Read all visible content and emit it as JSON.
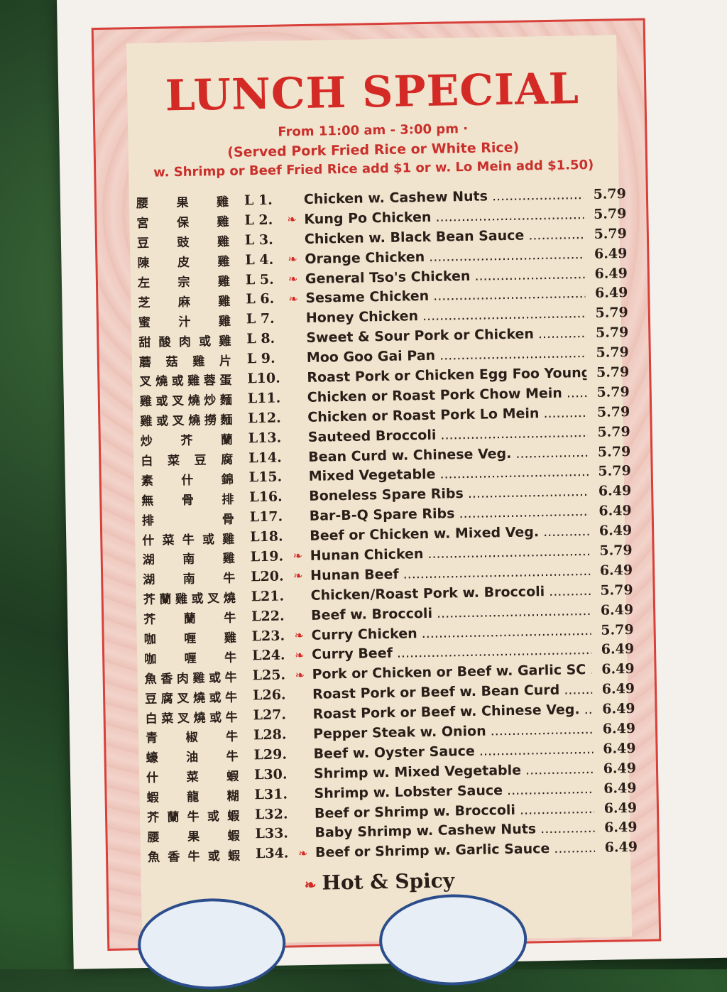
{
  "header": {
    "title": "LUNCH SPECIAL",
    "hours": "From 11:00 am - 3:00 pm ·",
    "served": "(Served Pork Fried Rice or White Rice)",
    "addon": "w. Shrimp or Beef Fried Rice add $1 or w. Lo Mein add $1.50)"
  },
  "items": [
    {
      "cn": "腰果雞",
      "code": "L 1.",
      "name": "Chicken w. Cashew Nuts",
      "price": "5.79",
      "hot": false
    },
    {
      "cn": "宮保雞",
      "code": "L 2.",
      "name": "Kung Po Chicken",
      "price": "5.79",
      "hot": true
    },
    {
      "cn": "豆豉雞",
      "code": "L 3.",
      "name": "Chicken w. Black Bean Sauce",
      "price": "5.79",
      "hot": false
    },
    {
      "cn": "陳皮雞",
      "code": "L 4.",
      "name": "Orange Chicken",
      "price": "6.49",
      "hot": true
    },
    {
      "cn": "左宗雞",
      "code": "L 5.",
      "name": "General Tso's Chicken",
      "price": "6.49",
      "hot": true
    },
    {
      "cn": "芝麻雞",
      "code": "L 6.",
      "name": "Sesame Chicken",
      "price": "6.49",
      "hot": true
    },
    {
      "cn": "蜜汁雞",
      "code": "L 7.",
      "name": "Honey Chicken",
      "price": "5.79",
      "hot": false
    },
    {
      "cn": "甜酸肉或雞",
      "code": "L 8.",
      "name": "Sweet & Sour Pork or Chicken",
      "price": "5.79",
      "hot": false
    },
    {
      "cn": "蘑菇雞片",
      "code": "L 9.",
      "name": "Moo Goo Gai Pan",
      "price": "5.79",
      "hot": false
    },
    {
      "cn": "叉燒或雞蓉蛋",
      "code": "L10.",
      "name": "Roast Pork or Chicken Egg Foo Young",
      "price": "5.79",
      "hot": false
    },
    {
      "cn": "雞或叉燒炒麵",
      "code": "L11.",
      "name": "Chicken or Roast Pork Chow Mein",
      "price": "5.79",
      "hot": false
    },
    {
      "cn": "雞或叉燒撈麵",
      "code": "L12.",
      "name": "Chicken or Roast Pork Lo Mein",
      "price": "5.79",
      "hot": false
    },
    {
      "cn": "炒芥蘭",
      "code": "L13.",
      "name": "Sauteed Broccoli",
      "price": "5.79",
      "hot": false
    },
    {
      "cn": "白菜豆腐",
      "code": "L14.",
      "name": "Bean Curd w. Chinese Veg.",
      "price": "5.79",
      "hot": false
    },
    {
      "cn": "素什錦",
      "code": "L15.",
      "name": "Mixed Vegetable",
      "price": "5.79",
      "hot": false
    },
    {
      "cn": "無骨排",
      "code": "L16.",
      "name": "Boneless Spare Ribs",
      "price": "6.49",
      "hot": false
    },
    {
      "cn": "排骨",
      "code": "L17.",
      "name": "Bar-B-Q Spare Ribs",
      "price": "6.49",
      "hot": false
    },
    {
      "cn": "什菜牛或雞",
      "code": "L18.",
      "name": "Beef or Chicken w. Mixed Veg.",
      "price": "6.49",
      "hot": false
    },
    {
      "cn": "湖南雞",
      "code": "L19.",
      "name": "Hunan Chicken",
      "price": "5.79",
      "hot": true
    },
    {
      "cn": "湖南牛",
      "code": "L20.",
      "name": "Hunan Beef",
      "price": "6.49",
      "hot": true
    },
    {
      "cn": "芥蘭雞或叉燒",
      "code": "L21.",
      "name": "Chicken/Roast Pork w. Broccoli",
      "price": "5.79",
      "hot": false
    },
    {
      "cn": "芥蘭牛",
      "code": "L22.",
      "name": "Beef w. Broccoli",
      "price": "6.49",
      "hot": false
    },
    {
      "cn": "咖喱雞",
      "code": "L23.",
      "name": "Curry Chicken",
      "price": "5.79",
      "hot": true
    },
    {
      "cn": "咖喱牛",
      "code": "L24.",
      "name": "Curry Beef",
      "price": "6.49",
      "hot": true
    },
    {
      "cn": "魚香肉雞或牛",
      "code": "L25.",
      "name": "Pork or Chicken or Beef w. Garlic SC",
      "price": "6.49",
      "hot": true
    },
    {
      "cn": "豆腐叉燒或牛",
      "code": "L26.",
      "name": "Roast Pork or Beef w. Bean Curd",
      "price": "6.49",
      "hot": false
    },
    {
      "cn": "白菜叉燒或牛",
      "code": "L27.",
      "name": "Roast Pork or Beef w. Chinese Veg.",
      "price": "6.49",
      "hot": false
    },
    {
      "cn": "青椒牛",
      "code": "L28.",
      "name": "Pepper Steak w. Onion",
      "price": "6.49",
      "hot": false
    },
    {
      "cn": "蠔油牛",
      "code": "L29.",
      "name": "Beef w. Oyster Sauce",
      "price": "6.49",
      "hot": false
    },
    {
      "cn": "什菜蝦",
      "code": "L30.",
      "name": "Shrimp w. Mixed Vegetable",
      "price": "6.49",
      "hot": false
    },
    {
      "cn": "蝦龍糊",
      "code": "L31.",
      "name": "Shrimp w. Lobster Sauce",
      "price": "6.49",
      "hot": false
    },
    {
      "cn": "芥蘭牛或蝦",
      "code": "L32.",
      "name": "Beef or Shrimp w. Broccoli",
      "price": "6.49",
      "hot": false
    },
    {
      "cn": "腰果蝦",
      "code": "L33.",
      "name": "Baby Shrimp w. Cashew Nuts",
      "price": "6.49",
      "hot": false
    },
    {
      "cn": "魚香牛或蝦",
      "code": "L34.",
      "name": "Beef or Shrimp w. Garlic Sauce",
      "price": "6.49",
      "hot": true
    }
  ],
  "legend": {
    "label": "Hot & Spicy",
    "icon": "pepper-icon"
  },
  "colors": {
    "accent": "#d42a26",
    "panel": "#f1e4cf",
    "border": "#ecc1b6"
  }
}
